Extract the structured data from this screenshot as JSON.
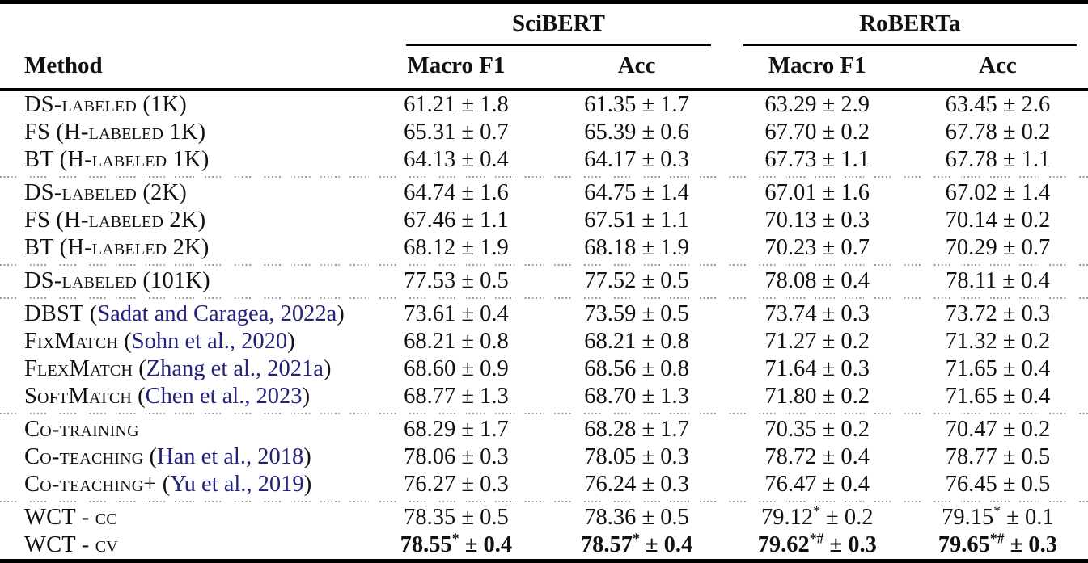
{
  "table": {
    "pm_sign": "±",
    "colors": {
      "text": "#111111",
      "citation_link": "#23237d",
      "rule": "#000000",
      "divider_dots": "#9a9a9a"
    },
    "header": {
      "method_label": "Method",
      "model_groups": [
        "SciBERT",
        "RoBERTa"
      ],
      "metric_headers": [
        "Macro F1",
        "Acc",
        "Macro F1",
        "Acc"
      ]
    },
    "rows": [
      {
        "method": "DS-labeled (1K)",
        "cite": "",
        "divider_after": false,
        "cells": [
          {
            "v": "61.21",
            "pm": "1.8",
            "sup": "",
            "b": false
          },
          {
            "v": "61.35",
            "pm": "1.7",
            "sup": "",
            "b": false
          },
          {
            "v": "63.29",
            "pm": "2.9",
            "sup": "",
            "b": false
          },
          {
            "v": "63.45",
            "pm": "2.6",
            "sup": "",
            "b": false
          }
        ]
      },
      {
        "method": "FS (H-labeled 1K)",
        "cite": "",
        "divider_after": false,
        "cells": [
          {
            "v": "65.31",
            "pm": "0.7",
            "sup": "",
            "b": false
          },
          {
            "v": "65.39",
            "pm": "0.6",
            "sup": "",
            "b": false
          },
          {
            "v": "67.70",
            "pm": "0.2",
            "sup": "",
            "b": false
          },
          {
            "v": "67.78",
            "pm": "0.2",
            "sup": "",
            "b": false
          }
        ]
      },
      {
        "method": "BT (H-labeled 1K)",
        "cite": "",
        "divider_after": true,
        "cells": [
          {
            "v": "64.13",
            "pm": "0.4",
            "sup": "",
            "b": false
          },
          {
            "v": "64.17",
            "pm": "0.3",
            "sup": "",
            "b": false
          },
          {
            "v": "67.73",
            "pm": "1.1",
            "sup": "",
            "b": false
          },
          {
            "v": "67.78",
            "pm": "1.1",
            "sup": "",
            "b": false
          }
        ]
      },
      {
        "method": "DS-labeled (2K)",
        "cite": "",
        "divider_after": false,
        "cells": [
          {
            "v": "64.74",
            "pm": "1.6",
            "sup": "",
            "b": false
          },
          {
            "v": "64.75",
            "pm": "1.4",
            "sup": "",
            "b": false
          },
          {
            "v": "67.01",
            "pm": "1.6",
            "sup": "",
            "b": false
          },
          {
            "v": "67.02",
            "pm": "1.4",
            "sup": "",
            "b": false
          }
        ]
      },
      {
        "method": "FS (H-labeled 2K)",
        "cite": "",
        "divider_after": false,
        "cells": [
          {
            "v": "67.46",
            "pm": "1.1",
            "sup": "",
            "b": false
          },
          {
            "v": "67.51",
            "pm": "1.1",
            "sup": "",
            "b": false
          },
          {
            "v": "70.13",
            "pm": "0.3",
            "sup": "",
            "b": false
          },
          {
            "v": "70.14",
            "pm": "0.2",
            "sup": "",
            "b": false
          }
        ]
      },
      {
        "method": "BT (H-labeled 2K)",
        "cite": "",
        "divider_after": true,
        "cells": [
          {
            "v": "68.12",
            "pm": "1.9",
            "sup": "",
            "b": false
          },
          {
            "v": "68.18",
            "pm": "1.9",
            "sup": "",
            "b": false
          },
          {
            "v": "70.23",
            "pm": "0.7",
            "sup": "",
            "b": false
          },
          {
            "v": "70.29",
            "pm": "0.7",
            "sup": "",
            "b": false
          }
        ]
      },
      {
        "method": "DS-labeled (101K)",
        "cite": "",
        "divider_after": true,
        "cells": [
          {
            "v": "77.53",
            "pm": "0.5",
            "sup": "",
            "b": false
          },
          {
            "v": "77.52",
            "pm": "0.5",
            "sup": "",
            "b": false
          },
          {
            "v": "78.08",
            "pm": "0.4",
            "sup": "",
            "b": false
          },
          {
            "v": "78.11",
            "pm": "0.4",
            "sup": "",
            "b": false
          }
        ]
      },
      {
        "method": "DBST",
        "cite": "Sadat and Caragea, 2022a",
        "divider_after": false,
        "cells": [
          {
            "v": "73.61",
            "pm": "0.4",
            "sup": "",
            "b": false
          },
          {
            "v": "73.59",
            "pm": "0.5",
            "sup": "",
            "b": false
          },
          {
            "v": "73.74",
            "pm": "0.3",
            "sup": "",
            "b": false
          },
          {
            "v": "73.72",
            "pm": "0.3",
            "sup": "",
            "b": false
          }
        ]
      },
      {
        "method": "FixMatch",
        "cite": "Sohn et al., 2020",
        "divider_after": false,
        "cells": [
          {
            "v": "68.21",
            "pm": "0.8",
            "sup": "",
            "b": false
          },
          {
            "v": "68.21",
            "pm": "0.8",
            "sup": "",
            "b": false
          },
          {
            "v": "71.27",
            "pm": "0.2",
            "sup": "",
            "b": false
          },
          {
            "v": "71.32",
            "pm": "0.2",
            "sup": "",
            "b": false
          }
        ]
      },
      {
        "method": "FlexMatch",
        "cite": "Zhang et al., 2021a",
        "divider_after": false,
        "cells": [
          {
            "v": "68.60",
            "pm": "0.9",
            "sup": "",
            "b": false
          },
          {
            "v": "68.56",
            "pm": "0.8",
            "sup": "",
            "b": false
          },
          {
            "v": "71.64",
            "pm": "0.3",
            "sup": "",
            "b": false
          },
          {
            "v": "71.65",
            "pm": "0.4",
            "sup": "",
            "b": false
          }
        ]
      },
      {
        "method": "SoftMatch",
        "cite": "Chen et al., 2023",
        "divider_after": true,
        "cells": [
          {
            "v": "68.77",
            "pm": "1.3",
            "sup": "",
            "b": false
          },
          {
            "v": "68.70",
            "pm": "1.3",
            "sup": "",
            "b": false
          },
          {
            "v": "71.80",
            "pm": "0.2",
            "sup": "",
            "b": false
          },
          {
            "v": "71.65",
            "pm": "0.4",
            "sup": "",
            "b": false
          }
        ]
      },
      {
        "method": "Co-training",
        "cite": "",
        "divider_after": false,
        "cells": [
          {
            "v": "68.29",
            "pm": "1.7",
            "sup": "",
            "b": false
          },
          {
            "v": "68.28",
            "pm": "1.7",
            "sup": "",
            "b": false
          },
          {
            "v": "70.35",
            "pm": "0.2",
            "sup": "",
            "b": false
          },
          {
            "v": "70.47",
            "pm": "0.2",
            "sup": "",
            "b": false
          }
        ]
      },
      {
        "method": "Co-teaching",
        "cite": "Han et al., 2018",
        "divider_after": false,
        "cells": [
          {
            "v": "78.06",
            "pm": "0.3",
            "sup": "",
            "b": false
          },
          {
            "v": "78.05",
            "pm": "0.3",
            "sup": "",
            "b": false
          },
          {
            "v": "78.72",
            "pm": "0.4",
            "sup": "",
            "b": false
          },
          {
            "v": "78.77",
            "pm": "0.5",
            "sup": "",
            "b": false
          }
        ]
      },
      {
        "method": "Co-teaching+",
        "cite": "Yu et al., 2019",
        "divider_after": true,
        "cells": [
          {
            "v": "76.27",
            "pm": "0.3",
            "sup": "",
            "b": false
          },
          {
            "v": "76.24",
            "pm": "0.3",
            "sup": "",
            "b": false
          },
          {
            "v": "76.47",
            "pm": "0.4",
            "sup": "",
            "b": false
          },
          {
            "v": "76.45",
            "pm": "0.5",
            "sup": "",
            "b": false
          }
        ]
      },
      {
        "method": "WCT - cc",
        "cite": "",
        "divider_after": false,
        "cells": [
          {
            "v": "78.35",
            "pm": "0.5",
            "sup": "",
            "b": false
          },
          {
            "v": "78.36",
            "pm": "0.5",
            "sup": "",
            "b": false
          },
          {
            "v": "79.12",
            "pm": "0.2",
            "sup": "*",
            "b": false
          },
          {
            "v": "79.15",
            "pm": "0.1",
            "sup": "*",
            "b": false
          }
        ]
      },
      {
        "method": "WCT - cv",
        "cite": "",
        "divider_after": false,
        "cells": [
          {
            "v": "78.55",
            "pm": "0.4",
            "sup": "*",
            "b": true
          },
          {
            "v": "78.57",
            "pm": "0.4",
            "sup": "*",
            "b": true
          },
          {
            "v": "79.62",
            "pm": "0.3",
            "sup": "*#",
            "b": true
          },
          {
            "v": "79.65",
            "pm": "0.3",
            "sup": "*#",
            "b": true
          }
        ]
      }
    ]
  }
}
